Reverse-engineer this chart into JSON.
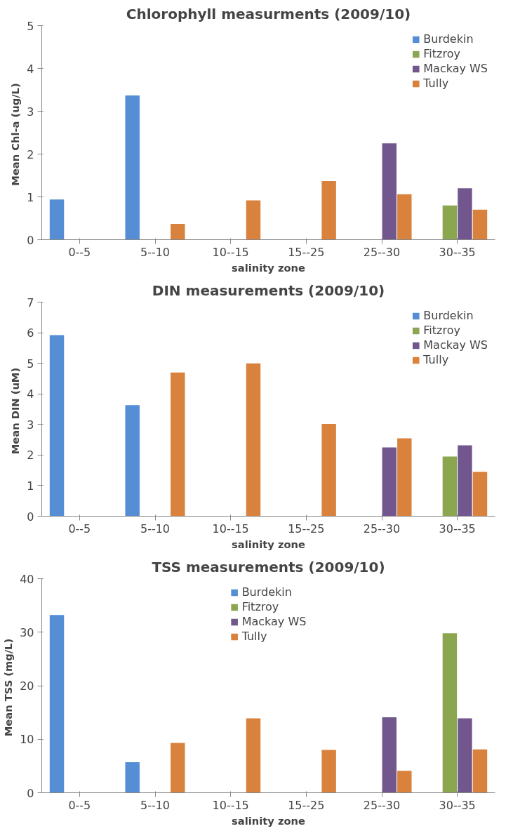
{
  "chart_data": [
    {
      "type": "bar",
      "title": "Chlorophyll measurments (2009/10)",
      "xlabel": "salinity zone",
      "ylabel": "Mean Chl-a  (ug/L)",
      "categories": [
        "0--5",
        "5--10",
        "10--15",
        "15--25",
        "25--30",
        "30--35"
      ],
      "ylim": [
        0,
        5
      ],
      "yticks": [
        0,
        1,
        2,
        3,
        4,
        5
      ],
      "grid": false,
      "legend": "top right",
      "series": [
        {
          "name": "Burdekin",
          "color": "#558ed5",
          "values": [
            0.94,
            3.37,
            null,
            null,
            null,
            null
          ]
        },
        {
          "name": "Fitzroy",
          "color": "#8aa64e",
          "values": [
            null,
            null,
            null,
            null,
            null,
            0.8
          ]
        },
        {
          "name": "Mackay WS",
          "color": "#72578e",
          "values": [
            null,
            null,
            null,
            null,
            2.25,
            1.2
          ]
        },
        {
          "name": "Tully",
          "color": "#d9823d",
          "values": [
            null,
            0.37,
            0.92,
            1.37,
            1.06,
            0.7
          ]
        }
      ]
    },
    {
      "type": "bar",
      "title": "DIN measurements (2009/10)",
      "xlabel": "salinity zone",
      "ylabel": "Mean DIN  (uM)",
      "categories": [
        "0--5",
        "5--10",
        "10--15",
        "15--25",
        "25--30",
        "30--35"
      ],
      "ylim": [
        0,
        7
      ],
      "yticks": [
        0,
        1,
        2,
        3,
        4,
        5,
        6,
        7
      ],
      "grid": false,
      "legend": "top right",
      "series": [
        {
          "name": "Burdekin",
          "color": "#558ed5",
          "values": [
            5.92,
            3.63,
            null,
            null,
            null,
            null
          ]
        },
        {
          "name": "Fitzroy",
          "color": "#8aa64e",
          "values": [
            null,
            null,
            null,
            null,
            null,
            1.95
          ]
        },
        {
          "name": "Mackay WS",
          "color": "#72578e",
          "values": [
            null,
            null,
            null,
            null,
            2.25,
            2.32
          ]
        },
        {
          "name": "Tully",
          "color": "#d9823d",
          "values": [
            null,
            4.7,
            5.0,
            3.02,
            2.55,
            1.45
          ]
        }
      ]
    },
    {
      "type": "bar",
      "title": "TSS measurements (2009/10)",
      "xlabel": "salinity zone",
      "ylabel": "Mean TSS  (mg/L)",
      "categories": [
        "0--5",
        "5--10",
        "10--15",
        "15--25",
        "25--30",
        "30--35"
      ],
      "ylim": [
        0,
        40
      ],
      "yticks": [
        0,
        10,
        20,
        30,
        40
      ],
      "grid": false,
      "legend": "top",
      "series": [
        {
          "name": "Burdekin",
          "color": "#558ed5",
          "values": [
            33.2,
            5.7,
            null,
            null,
            null,
            null
          ]
        },
        {
          "name": "Fitzroy",
          "color": "#8aa64e",
          "values": [
            null,
            null,
            null,
            null,
            null,
            29.8
          ]
        },
        {
          "name": "Mackay WS",
          "color": "#72578e",
          "values": [
            null,
            null,
            null,
            null,
            14.1,
            13.9
          ]
        },
        {
          "name": "Tully",
          "color": "#d9823d",
          "values": [
            null,
            9.3,
            13.9,
            8.0,
            4.1,
            8.1
          ]
        }
      ]
    }
  ]
}
